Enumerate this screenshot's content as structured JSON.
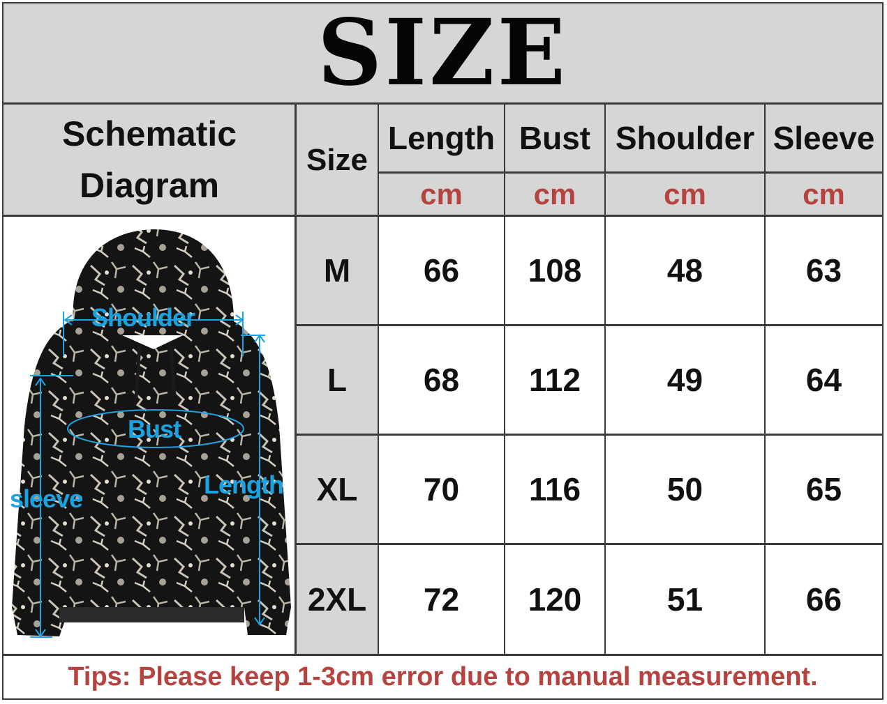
{
  "title": "SIZE",
  "header": {
    "schematic": "Schematic Diagram",
    "schematic_line1": "Schematic",
    "schematic_line2": "Diagram",
    "size": "Size",
    "columns": [
      "Length",
      "Bust",
      "Shoulder",
      "Sleeve"
    ],
    "unit": "cm"
  },
  "diagram": {
    "labels": {
      "shoulder": "Shoulder",
      "bust": "Bust",
      "sleeve": "sleeve",
      "length": "Length"
    },
    "arrow_color": "#1aa3e0"
  },
  "rows": [
    {
      "size": "M",
      "length": "66",
      "bust": "108",
      "shoulder": "48",
      "sleeve": "63"
    },
    {
      "size": "L",
      "length": "68",
      "bust": "112",
      "shoulder": "49",
      "sleeve": "64"
    },
    {
      "size": "XL",
      "length": "70",
      "bust": "116",
      "shoulder": "50",
      "sleeve": "65"
    },
    {
      "size": "2XL",
      "length": "72",
      "bust": "120",
      "shoulder": "51",
      "sleeve": "66"
    }
  ],
  "tips": "Tips: Please keep 1-3cm error due to manual measurement.",
  "colors": {
    "header_bg": "#d6d6d6",
    "unit_text": "#b5433f",
    "tips_text": "#b5433f",
    "grid_lines": "#3a3a3a"
  }
}
